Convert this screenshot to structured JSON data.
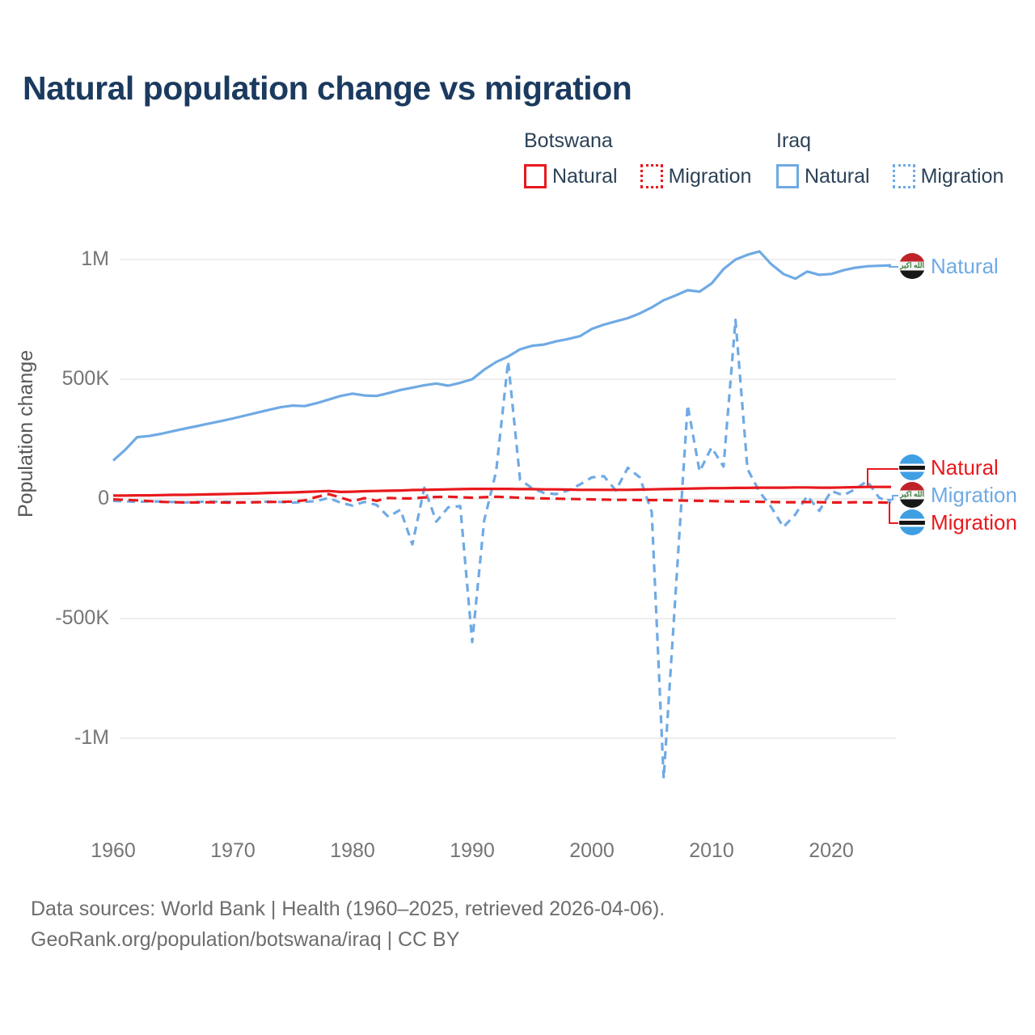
{
  "title": "Natural population change vs migration",
  "colors": {
    "botswana": "#e8191d",
    "iraq": "#6faae4",
    "grid": "#e8e8e8",
    "title_text": "#1b3a5f",
    "legend_text": "#2c4257",
    "tick_text": "#757575",
    "footer_text": "#6d6d6d"
  },
  "legend": {
    "groups": [
      {
        "name": "Botswana",
        "color_key": "botswana",
        "items": [
          {
            "label": "Natural",
            "style": "solid"
          },
          {
            "label": "Migration",
            "style": "dotted"
          }
        ]
      },
      {
        "name": "Iraq",
        "color_key": "iraq",
        "items": [
          {
            "label": "Natural",
            "style": "solid"
          },
          {
            "label": "Migration",
            "style": "dotted"
          }
        ]
      }
    ]
  },
  "axes": {
    "y_label": "Population change",
    "y_ticks": [
      {
        "label": "1M",
        "value": 1000
      },
      {
        "label": "500K",
        "value": 500
      },
      {
        "label": "0",
        "value": 0
      },
      {
        "label": "-500K",
        "value": -500
      },
      {
        "label": "-1M",
        "value": -1000
      }
    ],
    "x_ticks": [
      {
        "label": "1960",
        "value": 1960
      },
      {
        "label": "1970",
        "value": 1970
      },
      {
        "label": "1980",
        "value": 1980
      },
      {
        "label": "1990",
        "value": 1990
      },
      {
        "label": "2000",
        "value": 2000
      },
      {
        "label": "2010",
        "value": 2010
      },
      {
        "label": "2020",
        "value": 2020
      }
    ]
  },
  "end_labels": [
    {
      "id": "iraq-natural",
      "label": "Natural",
      "country": "iraq",
      "color_key": "iraq"
    },
    {
      "id": "botswana-natural",
      "label": "Natural",
      "country": "botswana",
      "color_key": "botswana"
    },
    {
      "id": "iraq-migration",
      "label": "Migration",
      "country": "iraq",
      "color_key": "iraq"
    },
    {
      "id": "botswana-migration",
      "label": "Migration",
      "country": "botswana",
      "color_key": "botswana"
    }
  ],
  "footer": {
    "line1": "Data sources: World Bank | Health (1960–2025, retrieved 2026-04-06).",
    "line2": "GeoRank.org/population/botswana/iraq | CC BY"
  },
  "chart_data": {
    "type": "line",
    "title": "Natural population change vs migration",
    "ylabel": "Population change",
    "units": "persons (thousands)",
    "years": {
      "start": 1960,
      "end": 2025,
      "step": 1
    },
    "ylim_thousands": [
      -1250,
      1100
    ],
    "grid": "horizontal-only",
    "legend_position": "top-right",
    "series": [
      {
        "name": "Iraq Natural",
        "id": "iraq-natural",
        "color_key": "iraq",
        "line_style": "solid",
        "values_thousands": [
          160,
          205,
          258,
          263,
          272,
          283,
          294,
          304,
          315,
          325,
          336,
          348,
          360,
          372,
          383,
          390,
          388,
          400,
          415,
          430,
          440,
          432,
          430,
          442,
          455,
          465,
          475,
          482,
          473,
          485,
          500,
          540,
          572,
          595,
          625,
          640,
          645,
          658,
          668,
          680,
          710,
          728,
          742,
          755,
          775,
          800,
          830,
          850,
          872,
          866,
          900,
          960,
          1000,
          1020,
          1034,
          980,
          940,
          920,
          950,
          936,
          940,
          955,
          966,
          972,
          974,
          976
        ]
      },
      {
        "name": "Iraq Migration",
        "id": "iraq-migration",
        "color_key": "iraq",
        "line_style": "dashed",
        "values_thousands": [
          -8,
          -10,
          -12,
          -10,
          -11,
          -13,
          -15,
          -13,
          -11,
          -12,
          -13,
          -15,
          -13,
          -11,
          -13,
          -16,
          -12,
          -9,
          4,
          -16,
          -28,
          -12,
          -25,
          -75,
          -45,
          -190,
          47,
          -95,
          -35,
          -30,
          -598,
          -90,
          115,
          575,
          80,
          45,
          25,
          20,
          35,
          60,
          90,
          95,
          35,
          130,
          90,
          -55,
          -1168,
          -390,
          392,
          115,
          215,
          135,
          748,
          125,
          30,
          -35,
          -118,
          -65,
          13,
          -50,
          33,
          15,
          40,
          75,
          5,
          -15
        ]
      },
      {
        "name": "Botswana Migration",
        "id": "botswana-migration",
        "color_key": "botswana",
        "line_style": "dashed",
        "values_thousands": [
          -2,
          -4,
          -6,
          -9,
          -12,
          -14,
          -15,
          -15,
          -14,
          -15,
          -16,
          -15,
          -14,
          -13,
          -12,
          -11,
          -6,
          8,
          20,
          6,
          -10,
          3,
          -8,
          4,
          2,
          2,
          6,
          8,
          9,
          7,
          5,
          7,
          9,
          7,
          5,
          3,
          2,
          1,
          0,
          -1,
          -2,
          -3,
          -4,
          -4,
          -5,
          -5,
          -5,
          -6,
          -7,
          -8,
          -9,
          -10,
          -11,
          -11,
          -12,
          -13,
          -14,
          -14,
          -13,
          -14,
          -15,
          -15,
          -14,
          -15,
          -15,
          -16
        ]
      },
      {
        "name": "Botswana Natural",
        "id": "botswana-natural",
        "color_key": "botswana",
        "line_style": "solid",
        "values_thousands": [
          14,
          14,
          15,
          15,
          16,
          17,
          17,
          18,
          19,
          20,
          21,
          22,
          23,
          25,
          26,
          27,
          29,
          31,
          33,
          29,
          30,
          32,
          33,
          34,
          35,
          37,
          38,
          39,
          40,
          41,
          42,
          42,
          42,
          42,
          41,
          41,
          40,
          40,
          39,
          38,
          38,
          38,
          38,
          38,
          39,
          40,
          41,
          42,
          43,
          44,
          45,
          45,
          46,
          46,
          47,
          47,
          47,
          48,
          48,
          47,
          47,
          48,
          49,
          50,
          50,
          50
        ]
      }
    ]
  }
}
